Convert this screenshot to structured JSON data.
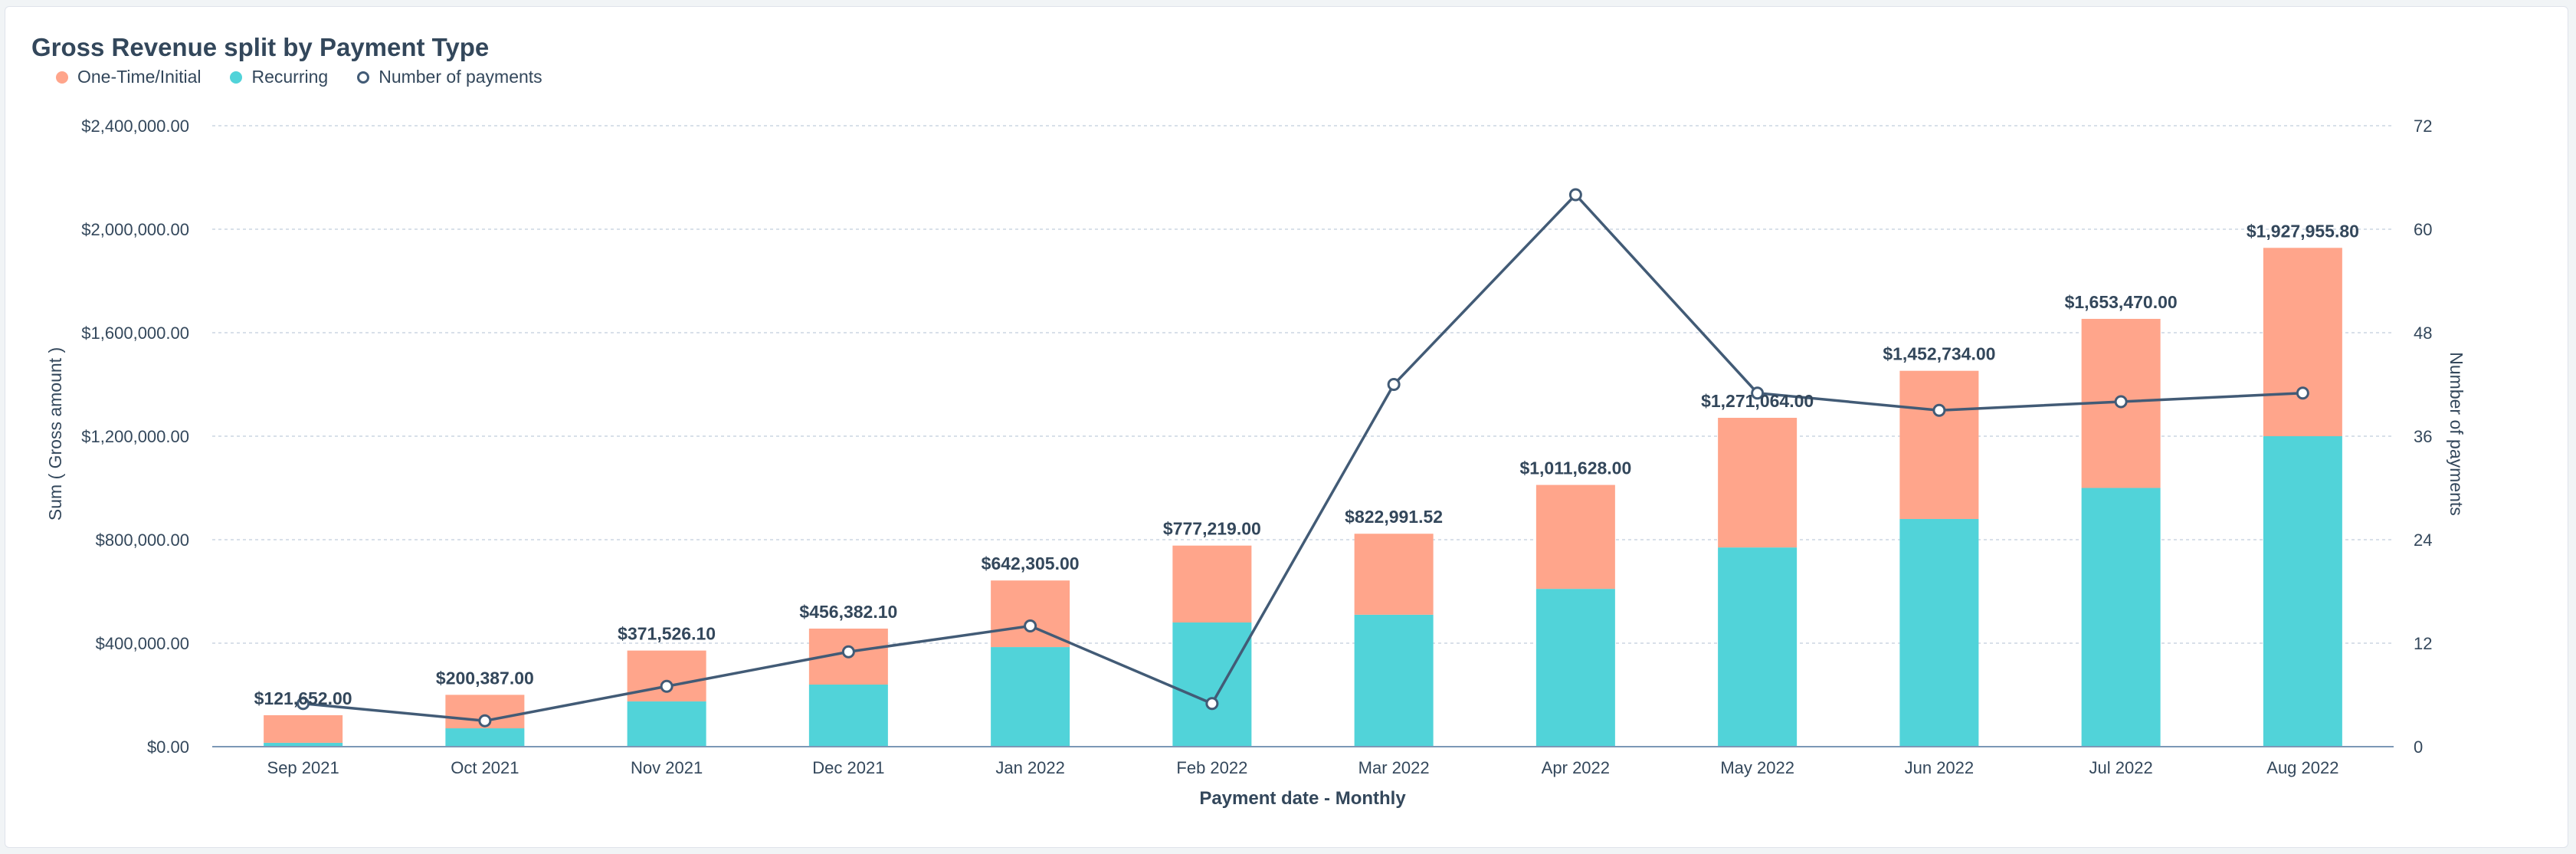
{
  "chart_data": {
    "type": "bar",
    "title": "Gross Revenue split by Payment Type",
    "xlabel": "Payment date - Monthly",
    "ylabel": "Sum ( Gross amount )",
    "y2label": "Number of payments",
    "ylim": [
      0,
      2400000
    ],
    "y2lim": [
      0,
      72
    ],
    "y_ticks": [
      "$0.00",
      "$400,000.00",
      "$800,000.00",
      "$1,200,000.00",
      "$1,600,000.00",
      "$2,000,000.00",
      "$2,400,000.00"
    ],
    "y2_ticks": [
      "0",
      "12",
      "24",
      "36",
      "48",
      "60",
      "72"
    ],
    "categories": [
      "Sep 2021",
      "Oct 2021",
      "Nov 2021",
      "Dec 2021",
      "Jan 2022",
      "Feb 2022",
      "Mar 2022",
      "Apr 2022",
      "May 2022",
      "Jun 2022",
      "Jul 2022",
      "Aug 2022"
    ],
    "stacked": true,
    "grid": true,
    "legend_position": "top-left",
    "series": [
      {
        "name": "One-Time/Initial",
        "kind": "bar",
        "axis": "left",
        "color": "#ffa58b",
        "values": [
          106652,
          129387,
          196526,
          216382,
          257305,
          297219,
          312991.52,
          401628,
          501064,
          572734,
          653470,
          727955.8
        ]
      },
      {
        "name": "Recurring",
        "kind": "bar",
        "axis": "left",
        "color": "#51d3d9",
        "values": [
          15000,
          71000,
          175000,
          240000,
          385000,
          480000,
          510000,
          610000,
          770000,
          880000,
          1000000,
          1200000
        ]
      },
      {
        "name": "Number of payments",
        "kind": "line",
        "axis": "right",
        "color": "#425b76",
        "values": [
          5,
          3,
          7,
          11,
          14,
          5,
          42,
          64,
          41,
          39,
          40,
          41
        ]
      }
    ],
    "totals": [
      121652,
      200387,
      371526.1,
      456382.1,
      642305,
      777219,
      822991.52,
      1011628,
      1271064,
      1452734,
      1653470,
      1927955.8
    ],
    "total_labels": [
      "$121,652.00",
      "$200,387.00",
      "$371,526.10",
      "$456,382.10",
      "$642,305.00",
      "$777,219.00",
      "$822,991.52",
      "$1,011,628.00",
      "$1,271,064.00",
      "$1,452,734.00",
      "$1,653,470.00",
      "$1,927,955.80"
    ]
  }
}
